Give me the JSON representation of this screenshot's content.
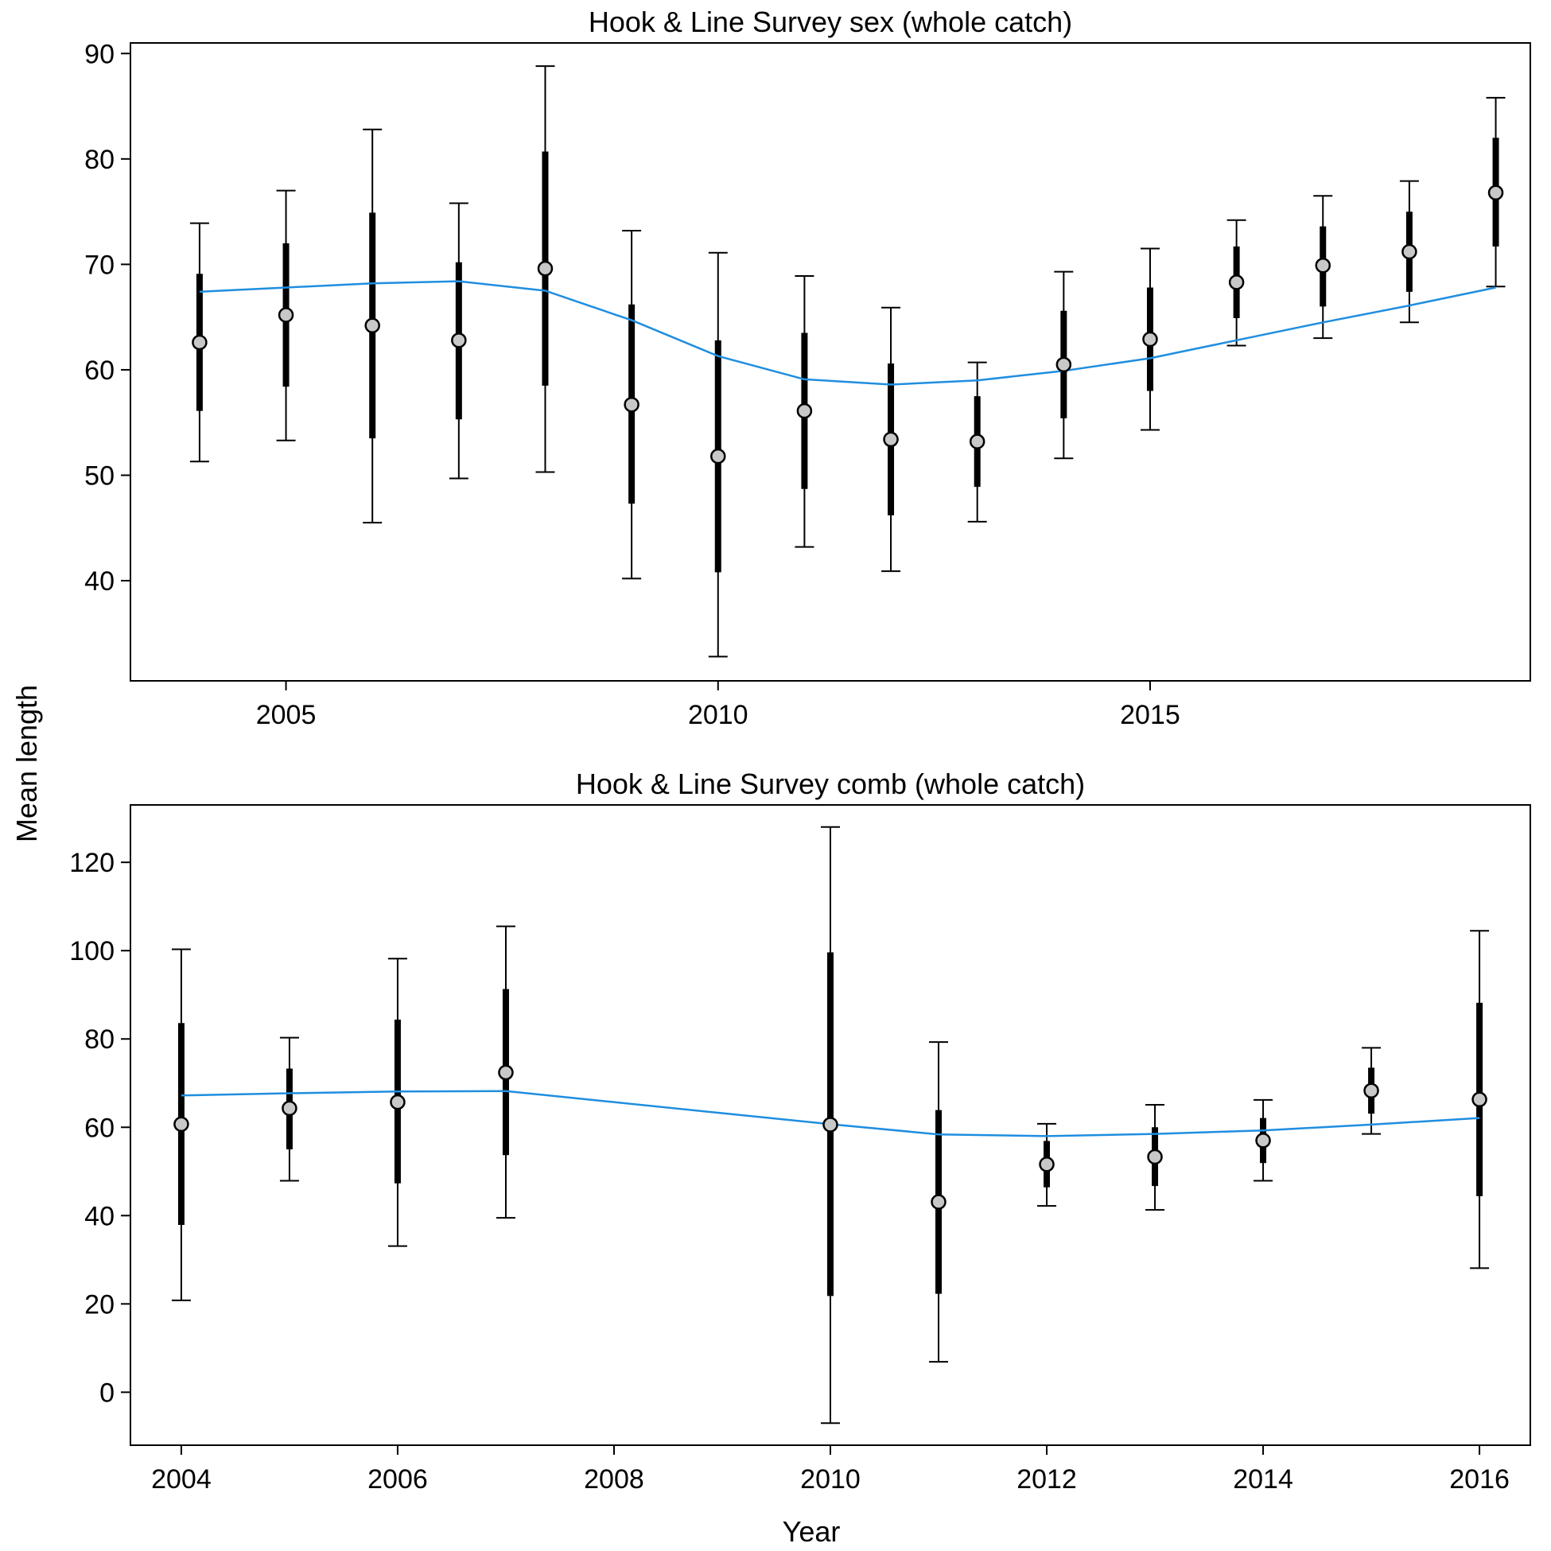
{
  "figure": {
    "ylabel": "Mean length",
    "xlabel": "Year",
    "colors": {
      "fit_line": "#1f8ee0",
      "point_fill": "#c8c8c8",
      "bars": "#000000"
    }
  },
  "chart_data": [
    {
      "type": "scatter",
      "title": "Hook & Line Survey sex (whole catch)",
      "xlim": [
        2003.2,
        2019.4
      ],
      "ylim": [
        30.5,
        91
      ],
      "x_ticks": [
        2005,
        2010,
        2015
      ],
      "y_ticks": [
        40,
        50,
        60,
        70,
        80,
        90
      ],
      "x": [
        2004,
        2005,
        2006,
        2007,
        2008,
        2009,
        2010,
        2011,
        2012,
        2013,
        2014,
        2015,
        2016,
        2017,
        2018,
        2019
      ],
      "observed": [
        62.6,
        65.2,
        64.2,
        62.8,
        69.6,
        56.7,
        51.8,
        56.1,
        53.4,
        53.2,
        60.5,
        62.9,
        68.3,
        69.9,
        71.2,
        76.8
      ],
      "inner_lower": [
        56.1,
        58.4,
        53.5,
        55.3,
        58.5,
        47.3,
        40.8,
        48.7,
        46.2,
        48.9,
        55.4,
        58.0,
        64.9,
        66.0,
        67.4,
        71.7
      ],
      "inner_upper": [
        69.1,
        72.0,
        74.9,
        70.2,
        80.7,
        66.2,
        62.8,
        63.5,
        60.6,
        57.5,
        65.6,
        67.8,
        71.7,
        73.6,
        75.0,
        82.0
      ],
      "outer_lower": [
        51.3,
        53.3,
        45.5,
        49.7,
        50.3,
        40.2,
        32.8,
        43.2,
        40.9,
        45.6,
        51.6,
        54.3,
        62.3,
        63.0,
        64.5,
        67.9
      ],
      "outer_upper": [
        73.9,
        77.0,
        82.8,
        75.8,
        88.8,
        73.2,
        71.1,
        68.9,
        65.9,
        60.7,
        69.3,
        71.5,
        74.2,
        76.5,
        77.9,
        85.8
      ],
      "expected": [
        67.4,
        67.8,
        68.2,
        68.4,
        67.5,
        64.7,
        61.3,
        59.1,
        58.6,
        59.0,
        59.9,
        61.1,
        62.8,
        64.5,
        66.1,
        67.8
      ]
    },
    {
      "type": "scatter",
      "title": "Hook & Line Survey comb (whole catch)",
      "xlim": [
        2003.53,
        2016.47
      ],
      "ylim": [
        -12,
        133
      ],
      "x_ticks": [
        2004,
        2006,
        2008,
        2010,
        2012,
        2014,
        2016
      ],
      "y_ticks": [
        0,
        20,
        40,
        60,
        80,
        100,
        120
      ],
      "x": [
        2004,
        2005,
        2006,
        2007,
        2010,
        2011,
        2012,
        2013,
        2014,
        2015,
        2016
      ],
      "observed": [
        60.7,
        64.3,
        65.7,
        72.4,
        60.6,
        43.1,
        51.6,
        53.3,
        57.0,
        68.3,
        66.3
      ],
      "inner_lower": [
        37.9,
        55.0,
        47.3,
        53.7,
        21.8,
        22.3,
        46.4,
        46.7,
        51.9,
        63.1,
        44.4
      ],
      "inner_upper": [
        83.6,
        73.3,
        84.4,
        91.3,
        99.6,
        63.9,
        56.9,
        60.0,
        62.1,
        73.5,
        88.2
      ],
      "outer_lower": [
        20.8,
        47.9,
        33.1,
        39.5,
        -7.0,
        6.9,
        42.2,
        41.3,
        47.9,
        58.5,
        28.1
      ],
      "outer_upper": [
        100.3,
        80.3,
        98.2,
        105.5,
        128.0,
        79.3,
        60.8,
        65.1,
        66.2,
        78.0,
        104.5
      ],
      "expected": [
        67.2,
        67.7,
        68.1,
        68.2,
        60.7,
        58.4,
        58.0,
        58.5,
        59.3,
        60.6,
        62.1
      ]
    }
  ]
}
